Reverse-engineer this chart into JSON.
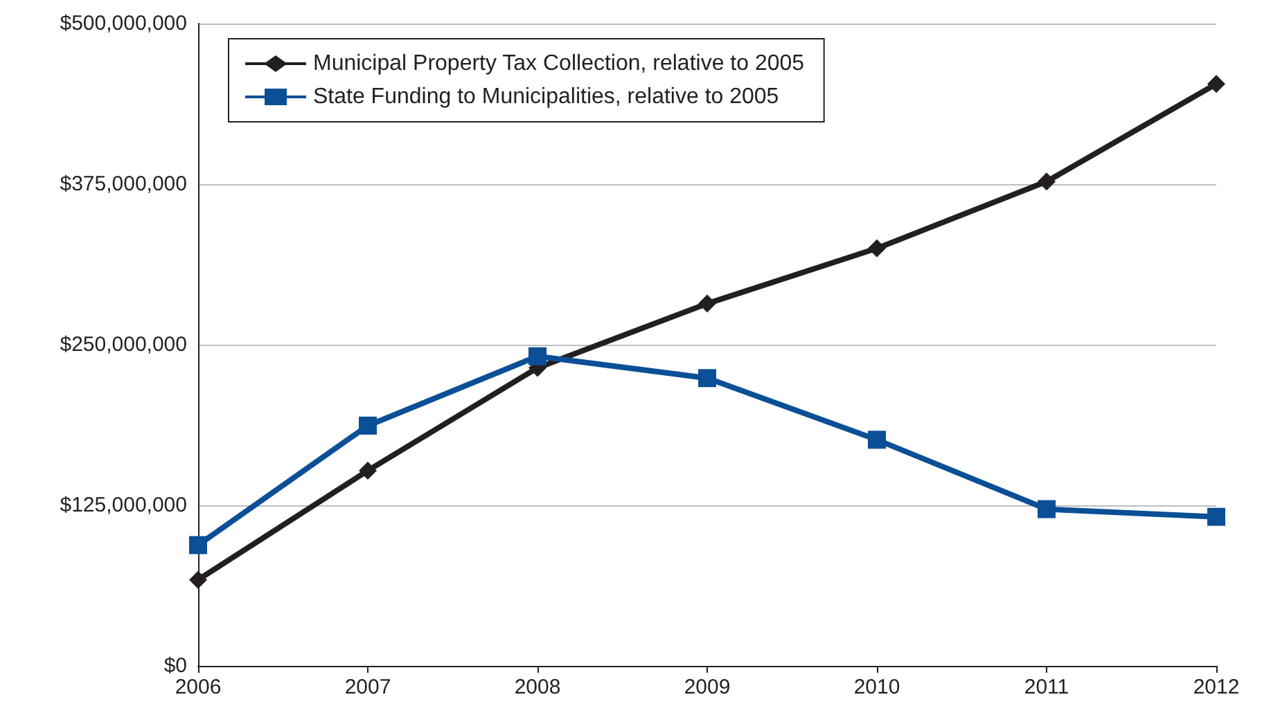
{
  "chart_data": {
    "type": "line",
    "x": [
      2006,
      2007,
      2008,
      2009,
      2010,
      2011,
      2012
    ],
    "xlim": [
      2006,
      2012
    ],
    "xticks": [
      2006,
      2007,
      2008,
      2009,
      2010,
      2011,
      2012
    ],
    "ylim": [
      0,
      500000000
    ],
    "yticks": [
      {
        "value": 0,
        "label": "$0"
      },
      {
        "value": 125000000,
        "label": "$125,000,000"
      },
      {
        "value": 250000000,
        "label": "$250,000,000"
      },
      {
        "value": 375000000,
        "label": "$375,000,000"
      },
      {
        "value": 500000000,
        "label": "$500,000,000"
      }
    ],
    "grid": "y",
    "legend": "top left",
    "series": [
      {
        "name": "Municipal Property Tax Collection, relative to 2005",
        "color": "#231f20",
        "marker": "diamond",
        "values": [
          67000000,
          152000000,
          232000000,
          282000000,
          325000000,
          377000000,
          453000000
        ]
      },
      {
        "name": "State Funding to Municipalities, relative to 2005",
        "color": "#0b4f96",
        "marker": "square",
        "values": [
          94000000,
          187000000,
          241000000,
          224000000,
          176000000,
          122000000,
          116000000
        ]
      }
    ]
  }
}
